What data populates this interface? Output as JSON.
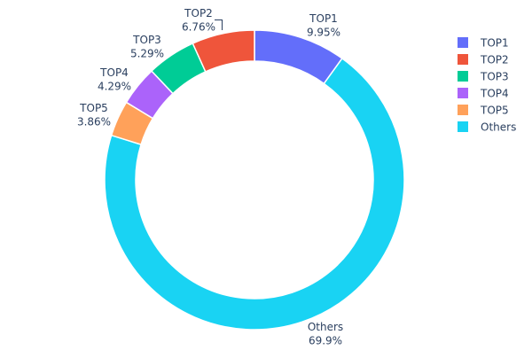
{
  "chart_data": {
    "type": "pie",
    "hole": true,
    "labels": [
      "TOP1",
      "TOP2",
      "TOP3",
      "TOP4",
      "TOP5",
      "Others"
    ],
    "values": [
      9.95,
      6.76,
      5.29,
      4.29,
      3.86,
      69.9
    ],
    "value_labels": [
      "9.95%",
      "6.76%",
      "5.29%",
      "4.29%",
      "3.86%",
      "69.9%"
    ],
    "colors": [
      "#636efa",
      "#EF553B",
      "#00cc96",
      "#ab63fa",
      "#FFA15A",
      "#19d3f3"
    ],
    "draw_order_clockwise_from_top": [
      "TOP1",
      "Others",
      "TOP5",
      "TOP4",
      "TOP3",
      "TOP2"
    ],
    "legend": {
      "position": "top-right",
      "entries": [
        "TOP1",
        "TOP2",
        "TOP3",
        "TOP4",
        "TOP5",
        "Others"
      ]
    }
  }
}
